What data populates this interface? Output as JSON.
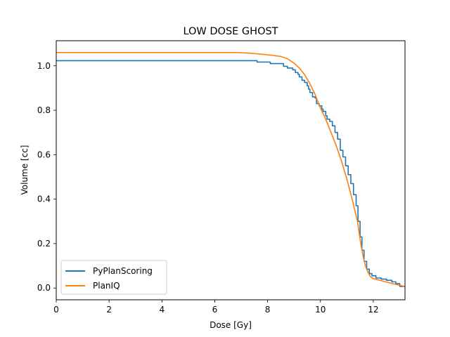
{
  "chart_data": {
    "type": "line",
    "title": "LOW DOSE GHOST",
    "xlabel": "Dose [Gy]",
    "ylabel": "Volume [cc]",
    "xlim": [
      0,
      13.2
    ],
    "ylim": [
      -0.053,
      1.113
    ],
    "xticks": [
      0,
      2,
      4,
      6,
      8,
      10,
      12
    ],
    "yticks": [
      0.0,
      0.2,
      0.4,
      0.6,
      0.8,
      1.0
    ],
    "xtick_labels": [
      "0",
      "2",
      "4",
      "6",
      "8",
      "10",
      "12"
    ],
    "ytick_labels": [
      "0.0",
      "0.2",
      "0.4",
      "0.6",
      "0.8",
      "1.0"
    ],
    "grid": false,
    "legend_position": "lower-left",
    "series": [
      {
        "name": "PyPlanScoring",
        "color": "#1f77b4",
        "step": true,
        "points": [
          [
            0,
            1.023
          ],
          [
            7.6,
            1.023
          ],
          [
            7.6,
            1.017
          ],
          [
            8.1,
            1.017
          ],
          [
            8.1,
            1.01
          ],
          [
            8.6,
            1.01
          ],
          [
            8.6,
            0.998
          ],
          [
            8.75,
            0.998
          ],
          [
            8.75,
            0.99
          ],
          [
            8.9,
            0.99
          ],
          [
            8.95,
            0.982
          ],
          [
            9.05,
            0.97
          ],
          [
            9.15,
            0.962
          ],
          [
            9.2,
            0.95
          ],
          [
            9.3,
            0.935
          ],
          [
            9.4,
            0.925
          ],
          [
            9.5,
            0.91
          ],
          [
            9.55,
            0.895
          ],
          [
            9.6,
            0.88
          ],
          [
            9.7,
            0.86
          ],
          [
            9.8,
            0.855
          ],
          [
            9.85,
            0.83
          ],
          [
            9.95,
            0.82
          ],
          [
            10.05,
            0.805
          ],
          [
            10.1,
            0.795
          ],
          [
            10.2,
            0.775
          ],
          [
            10.25,
            0.76
          ],
          [
            10.35,
            0.75
          ],
          [
            10.45,
            0.73
          ],
          [
            10.55,
            0.7
          ],
          [
            10.65,
            0.67
          ],
          [
            10.75,
            0.62
          ],
          [
            10.85,
            0.59
          ],
          [
            10.95,
            0.55
          ],
          [
            11.05,
            0.51
          ],
          [
            11.15,
            0.47
          ],
          [
            11.25,
            0.42
          ],
          [
            11.35,
            0.37
          ],
          [
            11.42,
            0.3
          ],
          [
            11.5,
            0.23
          ],
          [
            11.57,
            0.17
          ],
          [
            11.65,
            0.12
          ],
          [
            11.75,
            0.085
          ],
          [
            11.85,
            0.065
          ],
          [
            11.95,
            0.055
          ],
          [
            12.1,
            0.045
          ],
          [
            12.3,
            0.04
          ],
          [
            12.5,
            0.035
          ],
          [
            12.7,
            0.028
          ],
          [
            12.85,
            0.02
          ],
          [
            13.0,
            0.015
          ],
          [
            13.0,
            0.007
          ],
          [
            13.2,
            0.007
          ]
        ]
      },
      {
        "name": "PlanIQ",
        "color": "#ff7f0e",
        "step": false,
        "points": [
          [
            0,
            1.06
          ],
          [
            6.8,
            1.06
          ],
          [
            7.3,
            1.057
          ],
          [
            7.8,
            1.052
          ],
          [
            8.2,
            1.047
          ],
          [
            8.5,
            1.042
          ],
          [
            8.75,
            1.032
          ],
          [
            9.0,
            1.012
          ],
          [
            9.2,
            0.99
          ],
          [
            9.4,
            0.96
          ],
          [
            9.6,
            0.92
          ],
          [
            9.8,
            0.87
          ],
          [
            10.0,
            0.81
          ],
          [
            10.2,
            0.76
          ],
          [
            10.4,
            0.7
          ],
          [
            10.6,
            0.64
          ],
          [
            10.8,
            0.57
          ],
          [
            11.0,
            0.49
          ],
          [
            11.2,
            0.4
          ],
          [
            11.4,
            0.3
          ],
          [
            11.5,
            0.22
          ],
          [
            11.6,
            0.15
          ],
          [
            11.7,
            0.1
          ],
          [
            11.8,
            0.07
          ],
          [
            11.9,
            0.05
          ],
          [
            12.0,
            0.042
          ],
          [
            12.3,
            0.033
          ],
          [
            12.6,
            0.024
          ],
          [
            12.9,
            0.015
          ],
          [
            13.2,
            0.007
          ]
        ]
      }
    ]
  }
}
